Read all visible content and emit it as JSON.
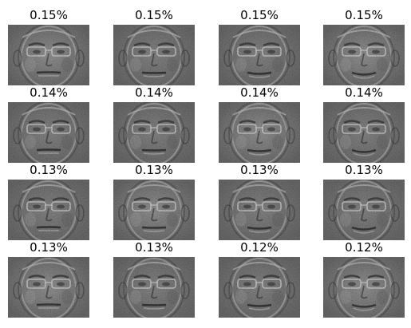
{
  "figure": {
    "background": "#ffffff",
    "panels": [
      {
        "title": "0.15%",
        "variance_percent": 0.15
      },
      {
        "title": "0.15%",
        "variance_percent": 0.15
      },
      {
        "title": "0.15%",
        "variance_percent": 0.15
      },
      {
        "title": "0.15%",
        "variance_percent": 0.15
      },
      {
        "title": "0.14%",
        "variance_percent": 0.14
      },
      {
        "title": "0.14%",
        "variance_percent": 0.14
      },
      {
        "title": "0.14%",
        "variance_percent": 0.14
      },
      {
        "title": "0.14%",
        "variance_percent": 0.14
      },
      {
        "title": "0.13%",
        "variance_percent": 0.13
      },
      {
        "title": "0.13%",
        "variance_percent": 0.13
      },
      {
        "title": "0.13%",
        "variance_percent": 0.13
      },
      {
        "title": "0.13%",
        "variance_percent": 0.13
      },
      {
        "title": "0.13%",
        "variance_percent": 0.13
      },
      {
        "title": "0.13%",
        "variance_percent": 0.13
      },
      {
        "title": "0.12%",
        "variance_percent": 0.12
      },
      {
        "title": "0.12%",
        "variance_percent": 0.12
      }
    ]
  }
}
